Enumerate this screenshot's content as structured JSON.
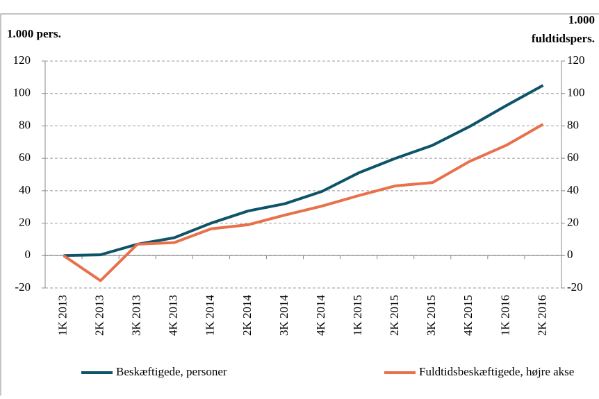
{
  "chart_data": {
    "type": "line",
    "y_label": "1.000 pers.",
    "y2_label": [
      "1.000",
      "fuldtidspers."
    ],
    "categories": [
      "1K 2013",
      "2K 2013",
      "3K 2013",
      "4K 2013",
      "1K 2014",
      "2K 2014",
      "3K 2014",
      "4K 2014",
      "1K 2015",
      "2K 2015",
      "3K 2015",
      "4K 2015",
      "1K 2016",
      "2K 2016"
    ],
    "series": [
      {
        "name": "Beskæftigede, personer",
        "color": "#0e5468",
        "values": [
          0,
          0.5,
          7,
          11,
          20,
          27.5,
          32,
          39.5,
          51,
          60,
          68,
          79.5,
          92.5,
          105
        ]
      },
      {
        "name": "Fuldtidsbeskæftigede, højre akse",
        "color": "#e8704a",
        "axis": "y2",
        "values": [
          0,
          -15.5,
          7,
          8,
          16.5,
          19,
          25,
          30.5,
          37,
          43,
          45,
          58,
          68,
          81
        ]
      }
    ],
    "ylim": [
      -20,
      120
    ],
    "yticks": [
      -20,
      0,
      20,
      40,
      60,
      80,
      100,
      120
    ],
    "y2lim": [
      -20,
      120
    ],
    "y2ticks": [
      -20,
      0,
      20,
      40,
      60,
      80,
      100,
      120
    ],
    "grid": true,
    "legend": "bottom"
  }
}
